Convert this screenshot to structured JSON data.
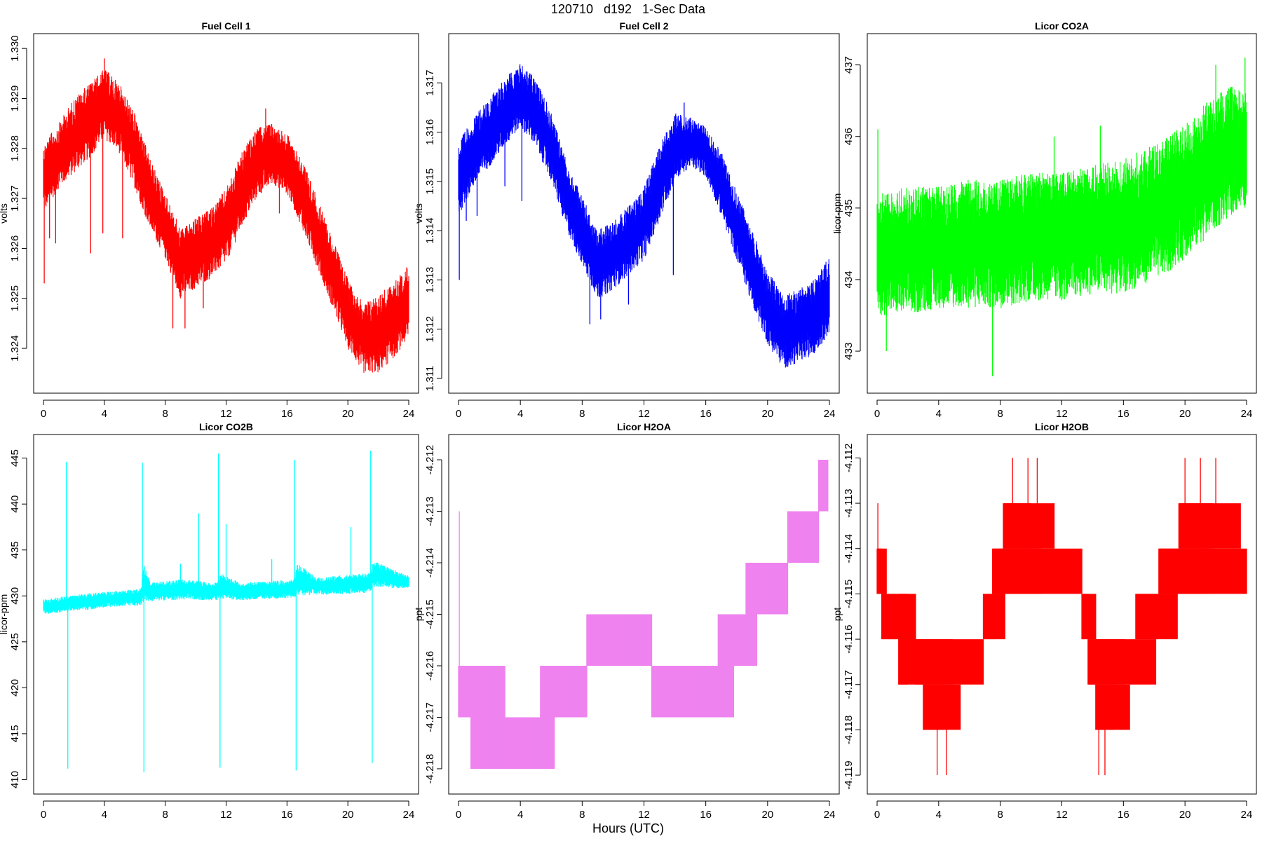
{
  "figure": {
    "title": "120710   d192   1-Sec Data",
    "xlabel": "Hours (UTC)"
  },
  "chart_data": [
    {
      "type": "line",
      "title": "Fuel Cell 1",
      "xlabel": "",
      "ylabel": "volts",
      "color": "#ff0000",
      "xlim": [
        0,
        24
      ],
      "ylim": [
        1.3233,
        1.3301
      ],
      "xticks": [
        0,
        4,
        8,
        12,
        16,
        20,
        24
      ],
      "yticks": [
        1.324,
        1.325,
        1.326,
        1.327,
        1.328,
        1.329,
        1.33
      ],
      "ytick_labels": [
        "1.324",
        "1.325",
        "1.326",
        "1.327",
        "1.328",
        "1.329",
        "1.330"
      ],
      "envelope": {
        "x": [
          0,
          1,
          2,
          3,
          4,
          5,
          6,
          7,
          8,
          9,
          10,
          11,
          12,
          13,
          14,
          15,
          16,
          17,
          18,
          19,
          20,
          21,
          22,
          23,
          24
        ],
        "low": [
          1.3267,
          1.3272,
          1.3275,
          1.3278,
          1.3282,
          1.3279,
          1.3272,
          1.3264,
          1.3258,
          1.325,
          1.3252,
          1.3254,
          1.3257,
          1.3264,
          1.327,
          1.3273,
          1.3271,
          1.3264,
          1.3256,
          1.3248,
          1.324,
          1.3235,
          1.3235,
          1.3238,
          1.3242
        ],
        "high": [
          1.3281,
          1.3285,
          1.329,
          1.3293,
          1.3296,
          1.3293,
          1.3287,
          1.3278,
          1.3271,
          1.3264,
          1.3266,
          1.3268,
          1.3272,
          1.3279,
          1.3284,
          1.3285,
          1.3283,
          1.3278,
          1.327,
          1.3262,
          1.3254,
          1.3249,
          1.3251,
          1.3253,
          1.3257
        ]
      },
      "spikes": [
        [
          0.05,
          1.3253
        ],
        [
          0.4,
          1.3262
        ],
        [
          0.8,
          1.3261
        ],
        [
          3.1,
          1.3259
        ],
        [
          3.9,
          1.3263
        ],
        [
          5.2,
          1.3262
        ],
        [
          8.5,
          1.3244
        ],
        [
          9.3,
          1.3244
        ],
        [
          10.5,
          1.3248
        ],
        [
          15.5,
          1.3267
        ],
        [
          14.6,
          1.3288
        ],
        [
          18.6,
          1.3258
        ],
        [
          4.0,
          1.3298
        ]
      ]
    },
    {
      "type": "line",
      "title": "Fuel Cell 2",
      "xlabel": "",
      "ylabel": "volts",
      "color": "#0000ff",
      "xlim": [
        0,
        24
      ],
      "ylim": [
        1.3109,
        1.3178
      ],
      "xticks": [
        0,
        4,
        8,
        12,
        16,
        20,
        24
      ],
      "yticks": [
        1.311,
        1.312,
        1.313,
        1.314,
        1.315,
        1.316,
        1.317
      ],
      "ytick_labels": [
        "1.311",
        "1.312",
        "1.313",
        "1.314",
        "1.315",
        "1.316",
        "1.317"
      ],
      "envelope": {
        "x": [
          0,
          1,
          2,
          3,
          4,
          5,
          6,
          7,
          8,
          9,
          10,
          11,
          12,
          13,
          14,
          15,
          16,
          17,
          18,
          19,
          20,
          21,
          22,
          23,
          24
        ],
        "low": [
          1.3143,
          1.3149,
          1.3153,
          1.3157,
          1.3161,
          1.3157,
          1.315,
          1.314,
          1.3133,
          1.3126,
          1.3128,
          1.3131,
          1.3134,
          1.3142,
          1.315,
          1.3153,
          1.3151,
          1.3143,
          1.3134,
          1.3125,
          1.3117,
          1.3112,
          1.3113,
          1.3115,
          1.3119
        ],
        "high": [
          1.3158,
          1.3163,
          1.3167,
          1.3171,
          1.3174,
          1.3171,
          1.3164,
          1.3154,
          1.3147,
          1.314,
          1.3142,
          1.3145,
          1.3149,
          1.3157,
          1.3164,
          1.3163,
          1.3161,
          1.3156,
          1.3148,
          1.314,
          1.3132,
          1.3127,
          1.3128,
          1.313,
          1.3135
        ]
      },
      "spikes": [
        [
          0.05,
          1.313
        ],
        [
          0.5,
          1.3142
        ],
        [
          1.2,
          1.3143
        ],
        [
          3.0,
          1.3149
        ],
        [
          4.1,
          1.3146
        ],
        [
          8.5,
          1.3121
        ],
        [
          9.2,
          1.3122
        ],
        [
          11.0,
          1.3125
        ],
        [
          14.6,
          1.3166
        ],
        [
          13.9,
          1.3131
        ],
        [
          18.8,
          1.3127
        ]
      ]
    },
    {
      "type": "line",
      "title": "Licor CO2A",
      "xlabel": "",
      "ylabel": "licor-ppm",
      "color": "#00ff00",
      "xlim": [
        0,
        24
      ],
      "ylim": [
        432.55,
        437.3
      ],
      "xticks": [
        0,
        4,
        8,
        12,
        16,
        20,
        24
      ],
      "yticks": [
        433,
        434,
        435,
        436,
        437
      ],
      "ytick_labels": [
        "433",
        "434",
        "435",
        "436",
        "437"
      ],
      "envelope": {
        "x": [
          0,
          2,
          4,
          6,
          8,
          10,
          12,
          14,
          16,
          18,
          19,
          20,
          21,
          22,
          23,
          24
        ],
        "low": [
          433.5,
          433.5,
          433.6,
          433.6,
          433.6,
          433.7,
          433.7,
          433.8,
          433.8,
          434.0,
          434.1,
          434.3,
          434.5,
          434.7,
          434.9,
          435.0
        ],
        "high": [
          435.2,
          435.3,
          435.3,
          435.4,
          435.4,
          435.5,
          435.5,
          435.6,
          435.7,
          435.9,
          436.0,
          436.2,
          436.4,
          436.6,
          436.7,
          436.6
        ]
      },
      "spikes": [
        [
          0.05,
          436.1
        ],
        [
          0.6,
          433.0
        ],
        [
          7.5,
          432.65
        ],
        [
          11.5,
          436.0
        ],
        [
          14.5,
          436.15
        ],
        [
          22.0,
          437.0
        ],
        [
          23.9,
          437.1
        ]
      ]
    },
    {
      "type": "line",
      "title": "Licor CO2B",
      "xlabel": "",
      "ylabel": "licor-ppm",
      "color": "#00ffff",
      "xlim": [
        0,
        24
      ],
      "ylim": [
        409.5,
        446.5
      ],
      "xticks": [
        0,
        4,
        8,
        12,
        16,
        20,
        24
      ],
      "yticks": [
        410,
        415,
        420,
        425,
        430,
        435,
        440,
        445
      ],
      "ytick_labels": [
        "410",
        "415",
        "420",
        "425",
        "430",
        "435",
        "440",
        "445"
      ],
      "envelope": {
        "x": [
          0,
          1.5,
          3,
          4.5,
          6.4,
          6.6,
          7,
          9,
          11.4,
          11.7,
          13,
          16.4,
          16.7,
          18,
          21.4,
          21.7,
          23,
          24
        ],
        "low": [
          428.0,
          428.3,
          428.5,
          428.8,
          429.0,
          429.4,
          429.4,
          429.6,
          429.5,
          429.7,
          429.5,
          429.8,
          430.0,
          430.1,
          430.3,
          431.0,
          430.8,
          430.9
        ],
        "high": [
          429.6,
          430.0,
          430.3,
          430.5,
          430.8,
          433.5,
          431.5,
          431.8,
          431.5,
          432.5,
          431.4,
          431.8,
          433.5,
          432.0,
          432.5,
          433.8,
          432.9,
          432.2
        ]
      },
      "spikes": [
        [
          1.5,
          444.6
        ],
        [
          1.6,
          411.2
        ],
        [
          6.5,
          444.5
        ],
        [
          6.6,
          410.8
        ],
        [
          11.5,
          445.5
        ],
        [
          11.6,
          411.3
        ],
        [
          16.5,
          444.8
        ],
        [
          16.6,
          411.0
        ],
        [
          21.5,
          445.8
        ],
        [
          21.6,
          411.8
        ],
        [
          10.2,
          439.0
        ],
        [
          12.0,
          437.8
        ],
        [
          15.0,
          434.0
        ],
        [
          20.2,
          437.5
        ],
        [
          9.0,
          433.5
        ]
      ]
    },
    {
      "type": "line",
      "title": "Licor H2OA",
      "xlabel": "",
      "ylabel": "ppt",
      "color": "#ee82ee",
      "xlim": [
        0,
        24
      ],
      "ylim": [
        -4.2183,
        -4.2117
      ],
      "xticks": [
        0,
        4,
        8,
        12,
        16,
        20,
        24
      ],
      "yticks": [
        -4.218,
        -4.217,
        -4.216,
        -4.215,
        -4.214,
        -4.213,
        -4.212
      ],
      "ytick_labels": [
        "-4.218",
        "-4.217",
        "-4.216",
        "-4.215",
        "-4.214",
        "-4.213",
        "-4.212"
      ],
      "steps": [
        {
          "x0": 0.0,
          "x1": 0.8,
          "low": -4.217,
          "high": -4.216
        },
        {
          "x0": 0.8,
          "x1": 3.0,
          "low": -4.218,
          "high": -4.216
        },
        {
          "x0": 3.0,
          "x1": 6.2,
          "low": -4.218,
          "high": -4.217
        },
        {
          "x0": 5.3,
          "x1": 8.3,
          "low": -4.217,
          "high": -4.216
        },
        {
          "x0": 8.3,
          "x1": 12.5,
          "low": -4.216,
          "high": -4.215
        },
        {
          "x0": 12.5,
          "x1": 17.8,
          "low": -4.217,
          "high": -4.216
        },
        {
          "x0": 16.8,
          "x1": 19.3,
          "low": -4.216,
          "high": -4.215
        },
        {
          "x0": 18.6,
          "x1": 21.3,
          "low": -4.215,
          "high": -4.214
        },
        {
          "x0": 21.3,
          "x1": 23.3,
          "low": -4.214,
          "high": -4.213
        },
        {
          "x0": 23.3,
          "x1": 23.9,
          "low": -4.213,
          "high": -4.212
        }
      ],
      "spikes": [
        [
          0.05,
          -4.213
        ]
      ]
    },
    {
      "type": "line",
      "title": "Licor H2OB",
      "xlabel": "",
      "ylabel": "ppt",
      "color": "#ff0000",
      "xlim": [
        0,
        24
      ],
      "ylim": [
        -4.1192,
        -4.1117
      ],
      "xticks": [
        0,
        4,
        8,
        12,
        16,
        20,
        24
      ],
      "yticks": [
        -4.119,
        -4.118,
        -4.117,
        -4.116,
        -4.115,
        -4.114,
        -4.113,
        -4.112
      ],
      "ytick_labels": [
        "-4.119",
        "-4.118",
        "-4.117",
        "-4.116",
        "-4.115",
        "-4.114",
        "-4.113",
        "-4.112"
      ],
      "steps": [
        {
          "x0": 0.0,
          "x1": 0.6,
          "low": -4.115,
          "high": -4.114
        },
        {
          "x0": 0.3,
          "x1": 2.0,
          "low": -4.116,
          "high": -4.115
        },
        {
          "x0": 1.4,
          "x1": 2.5,
          "low": -4.117,
          "high": -4.115
        },
        {
          "x0": 2.5,
          "x1": 6.9,
          "low": -4.117,
          "high": -4.116
        },
        {
          "x0": 3.0,
          "x1": 5.4,
          "low": -4.118,
          "high": -4.117
        },
        {
          "x0": 6.9,
          "x1": 8.3,
          "low": -4.116,
          "high": -4.115
        },
        {
          "x0": 7.5,
          "x1": 13.3,
          "low": -4.115,
          "high": -4.114
        },
        {
          "x0": 8.2,
          "x1": 11.5,
          "low": -4.114,
          "high": -4.113
        },
        {
          "x0": 13.3,
          "x1": 14.2,
          "low": -4.116,
          "high": -4.115
        },
        {
          "x0": 13.7,
          "x1": 18.1,
          "low": -4.117,
          "high": -4.116
        },
        {
          "x0": 14.2,
          "x1": 16.4,
          "low": -4.118,
          "high": -4.117
        },
        {
          "x0": 16.8,
          "x1": 19.5,
          "low": -4.116,
          "high": -4.115
        },
        {
          "x0": 18.3,
          "x1": 24.0,
          "low": -4.115,
          "high": -4.114
        },
        {
          "x0": 19.6,
          "x1": 23.6,
          "low": -4.114,
          "high": -4.113
        }
      ],
      "spikes": [
        [
          8.8,
          -4.112
        ],
        [
          9.8,
          -4.112
        ],
        [
          10.4,
          -4.112
        ],
        [
          20.0,
          -4.112
        ],
        [
          21.0,
          -4.112
        ],
        [
          22.0,
          -4.112
        ],
        [
          3.9,
          -4.119
        ],
        [
          4.5,
          -4.119
        ],
        [
          14.4,
          -4.119
        ],
        [
          14.8,
          -4.119
        ],
        [
          0.05,
          -4.113
        ]
      ]
    }
  ]
}
